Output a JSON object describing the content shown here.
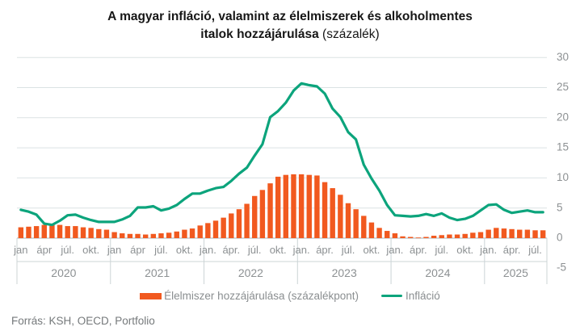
{
  "title": {
    "line1": "A magyar infláció, valamint az élelmiszerek és alkoholmentes",
    "line2_bold": "italok hozzájárulása",
    "line2_normal": "(százalék)"
  },
  "source_line": "Forrás: KSH, OECD, Portfolio",
  "chart_data": {
    "type": "bar",
    "subtype": "bar+line combo, monthly data jan 2020 - aug 2025",
    "ylim": [
      -5,
      30
    ],
    "yticks": [
      30,
      25,
      20,
      15,
      10,
      5,
      0,
      -5
    ],
    "grid": "horizontal light gridlines, right-side y axis labels",
    "legend_position": "bottom center",
    "years": [
      {
        "label": "2020",
        "month_ticks": [
          "jan",
          "ápr",
          "júl.",
          "okt."
        ]
      },
      {
        "label": "2021",
        "month_ticks": [
          "jan",
          "ápr",
          "júl.",
          "okt."
        ]
      },
      {
        "label": "2022",
        "month_ticks": [
          "jan.",
          "ápr.",
          "júl.",
          "okt."
        ]
      },
      {
        "label": "2023",
        "month_ticks": [
          "jan.",
          "ápr.",
          "júl.",
          "okt."
        ]
      },
      {
        "label": "2024",
        "month_ticks": [
          "jan.",
          "ápr.",
          "júl.",
          "okt."
        ]
      },
      {
        "label": "2025",
        "month_ticks": [
          "jan.",
          "ápr.",
          "júl."
        ]
      }
    ],
    "months_per_year": [
      12,
      12,
      12,
      12,
      12,
      8
    ],
    "series": [
      {
        "name": "Élelmiszer hozzájárulása (százalékpont)",
        "type": "bar",
        "color": "#f1591f",
        "values": [
          1.8,
          1.9,
          2.0,
          2.2,
          2.4,
          2.2,
          2.0,
          2.0,
          1.8,
          1.7,
          1.5,
          1.4,
          1.0,
          0.8,
          0.7,
          0.7,
          0.6,
          0.7,
          0.8,
          0.9,
          1.1,
          1.4,
          1.6,
          2.1,
          2.5,
          2.9,
          3.4,
          4.1,
          4.8,
          5.7,
          7.0,
          8.0,
          9.1,
          10.2,
          10.5,
          10.6,
          10.6,
          10.5,
          10.4,
          9.3,
          8.3,
          7.2,
          5.8,
          4.8,
          3.7,
          2.6,
          1.7,
          1.2,
          0.8,
          0.3,
          0.2,
          0.1,
          0.2,
          0.4,
          0.5,
          0.6,
          0.6,
          0.7,
          0.9,
          1.0,
          1.4,
          1.7,
          1.6,
          1.5,
          1.4,
          1.4,
          1.3,
          1.3
        ]
      },
      {
        "name": "Infláció",
        "type": "line",
        "color": "#0ca47c",
        "values": [
          4.7,
          4.4,
          3.9,
          2.4,
          2.2,
          2.9,
          3.8,
          3.9,
          3.4,
          3.0,
          2.7,
          2.7,
          2.7,
          3.1,
          3.7,
          5.1,
          5.1,
          5.3,
          4.6,
          4.9,
          5.5,
          6.5,
          7.4,
          7.4,
          7.9,
          8.3,
          8.5,
          9.5,
          10.7,
          11.7,
          13.7,
          15.6,
          20.1,
          21.1,
          22.5,
          24.5,
          25.7,
          25.4,
          25.2,
          24.0,
          21.5,
          20.1,
          17.6,
          16.4,
          12.2,
          9.9,
          7.9,
          5.5,
          3.8,
          3.7,
          3.6,
          3.7,
          4.0,
          3.7,
          4.1,
          3.4,
          3.0,
          3.2,
          3.7,
          4.6,
          5.5,
          5.6,
          4.7,
          4.2,
          4.4,
          4.6,
          4.3,
          4.3
        ]
      }
    ],
    "style_colors": {
      "gridline": "#dbe2e4",
      "zero_line": "#b9c0c3",
      "axis_divider": "#ccd4d6",
      "tick_text": "#8d9193"
    }
  }
}
